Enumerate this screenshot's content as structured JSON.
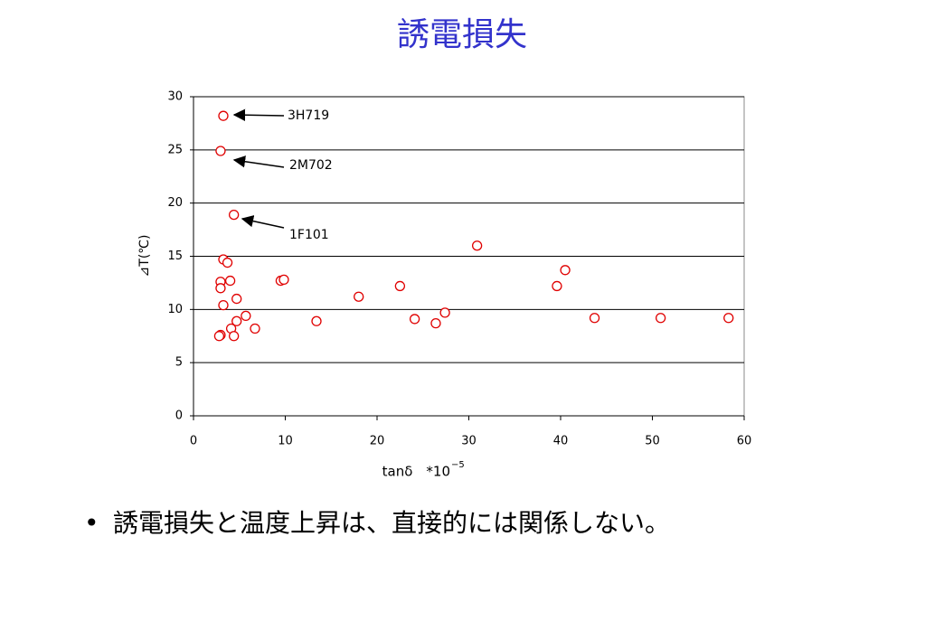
{
  "chart_data": {
    "type": "scatter",
    "title": "誘電損失",
    "x_label": "tanδ　*10",
    "x_label_exponent": "−5",
    "y_label": "⊿T(℃)",
    "series": [
      {
        "color": "#e00000",
        "x": [
          3.25,
          2.95,
          4.4,
          3.25,
          3.7,
          2.95,
          2.95,
          4.0,
          4.7,
          3.25,
          5.7,
          4.7,
          4.1,
          6.7,
          2.95,
          2.8,
          4.4,
          9.5,
          9.85,
          13.4,
          18.0,
          22.5,
          24.1,
          26.4,
          27.4,
          30.9,
          39.6,
          40.5,
          43.7,
          50.9,
          58.3
        ],
        "values": [
          28.2,
          24.9,
          18.9,
          14.7,
          14.4,
          12.6,
          12.0,
          12.7,
          11.0,
          10.4,
          9.4,
          8.9,
          8.2,
          8.2,
          7.6,
          7.5,
          7.5,
          12.7,
          12.8,
          8.9,
          11.2,
          12.2,
          9.1,
          8.7,
          9.7,
          16.0,
          12.2,
          13.7,
          9.2,
          9.2,
          9.2
        ]
      }
    ],
    "annotations": [
      "3H719",
      "2M702",
      "1F101"
    ],
    "xlim": [
      0,
      60
    ],
    "xticks": [
      0,
      10,
      20,
      30,
      40,
      50,
      60
    ],
    "ylim": [
      0,
      30
    ],
    "yticks": [
      0,
      5,
      10,
      15,
      20,
      25,
      30
    ],
    "grid": true
  },
  "bullet": "誘電損失と温度上昇は、直接的には関係しない。"
}
